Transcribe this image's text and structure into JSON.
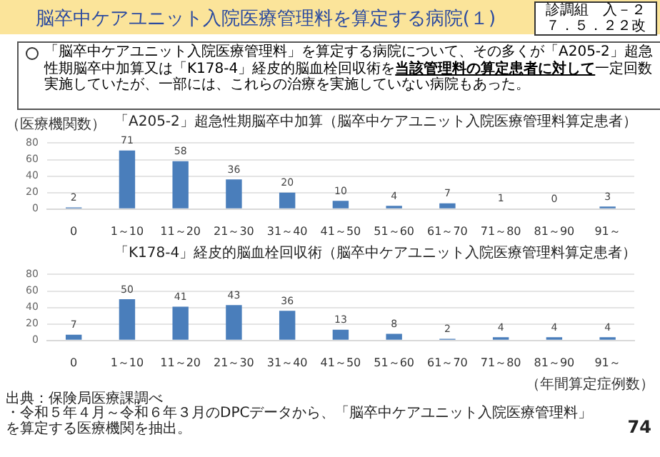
{
  "chart_data": [
    {
      "type": "other",
      "title": "脳卒中ケアユニット入院医療管理料を算定する病院(１)",
      "annotations": [
        "「脳卒中ケアユニット入院医療管理料」を算定する病院について、その多くが「A205-2」超急性期脳卒中加算又は「K178-4」経皮的脳血栓回収術を",
        "当該管理料の算定患者に対して",
        "一定回数実施していたが、一部には、これらの治療を実施していない病院もあった。",
        "診調組　入－２",
        "７．５．２２改"
      ]
    },
    {
      "type": "bar",
      "title": "「A205-2」超急性期脳卒中加算（脳卒中ケアユニット入院医療管理料算定患者）",
      "ylabel": "（医療機関数）",
      "categories": [
        "0",
        "1～10",
        "11～20",
        "21～30",
        "31～40",
        "41～50",
        "51～60",
        "61～70",
        "71～80",
        "81～90",
        "91～"
      ],
      "values": [
        2,
        71,
        58,
        36,
        20,
        10,
        4,
        7,
        1,
        0,
        3
      ],
      "color": "#4a7ebb",
      "ylim": [
        0,
        80
      ],
      "yticks": [
        0,
        20,
        40,
        60,
        80
      ],
      "grid": "y",
      "data_labels": true
    },
    {
      "type": "bar",
      "title": "「K178-4」経皮的脳血栓回収術（脳卒中ケアユニット入院医療管理料算定患者）",
      "xlabel": "（年間算定症例数）",
      "categories": [
        "0",
        "1～10",
        "11～20",
        "21～30",
        "31～40",
        "41～50",
        "51～60",
        "61～70",
        "71～80",
        "81～90",
        "91～"
      ],
      "values": [
        7,
        50,
        41,
        43,
        36,
        13,
        8,
        2,
        4,
        4,
        4
      ],
      "color": "#4a7ebb",
      "ylim": [
        0,
        80
      ],
      "yticks": [
        0,
        20,
        40,
        60,
        80
      ],
      "grid": "y",
      "data_labels": true,
      "annotations": [
        "出典：保険局医療課調べ",
        "・令和５年４月～令和６年３月のDPCデータから、「脳卒中ケアユニット入院医療管理料」を算定する医療機関を抽出。",
        "74"
      ]
    }
  ]
}
